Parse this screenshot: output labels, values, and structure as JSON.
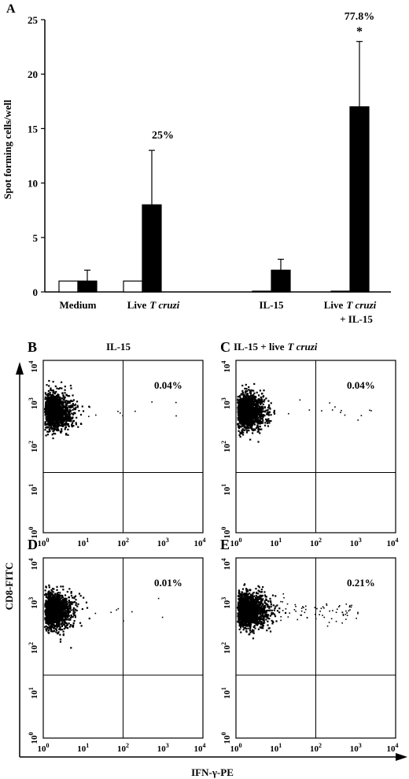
{
  "panel_a": {
    "letter": "A",
    "ylabel": "Spot forming cells/well",
    "y_ticks": [
      "0",
      "5",
      "10",
      "15",
      "20",
      "25"
    ],
    "group_labels": [
      {
        "line1": "Medium",
        "line2": ""
      },
      {
        "line1": "Live",
        "italic": "T cruzi",
        "line2": ""
      },
      {
        "line1": "IL-15",
        "line2": ""
      },
      {
        "line1": "Live",
        "italic": "T cruzi",
        "line2": "+ IL-15"
      }
    ],
    "annotations": [
      "25%",
      "77.8%",
      "*"
    ]
  },
  "chart_data": [
    {
      "type": "bar",
      "categories": [
        "Medium",
        "Live T cruzi",
        "IL-15",
        "Live T cruzi + IL-15"
      ],
      "series": [
        {
          "values": [
            1,
            1,
            0,
            0
          ],
          "errors": [
            0,
            0,
            0,
            0
          ],
          "color": "#ffffff"
        },
        {
          "values": [
            1,
            8,
            2,
            17
          ],
          "errors": [
            1,
            5,
            1,
            6
          ],
          "color": "#000000"
        }
      ],
      "ylim": [
        0,
        25
      ],
      "ylabel": "Spot forming cells/well",
      "annotations": [
        {
          "category": "Live T cruzi",
          "text": "25%"
        },
        {
          "category": "Live T cruzi + IL-15",
          "text": "77.8%"
        },
        {
          "category": "Live T cruzi + IL-15",
          "text": "*"
        }
      ]
    },
    {
      "type": "scatter",
      "panels": [
        {
          "letter": "B",
          "title": "IL-15",
          "percent": "0.04%",
          "sparse": 10
        },
        {
          "letter": "C",
          "title": "IL-15 + live",
          "title_italic": "T cruzi",
          "percent": "0.04%",
          "sparse": 14
        },
        {
          "letter": "D",
          "title": "",
          "percent": "0.01%",
          "sparse": 8
        },
        {
          "letter": "E",
          "title": "",
          "percent": "0.21%",
          "sparse": 70
        }
      ],
      "xlabel": "IFN-γ-PE",
      "ylabel": "CD8-FITC",
      "log_scale": true,
      "tick_labels": [
        "10",
        "10",
        "10",
        "10",
        "10"
      ],
      "tick_exponents": [
        "0",
        "1",
        "2",
        "3",
        "4"
      ],
      "gate_x": 100,
      "gate_y": 25
    }
  ]
}
